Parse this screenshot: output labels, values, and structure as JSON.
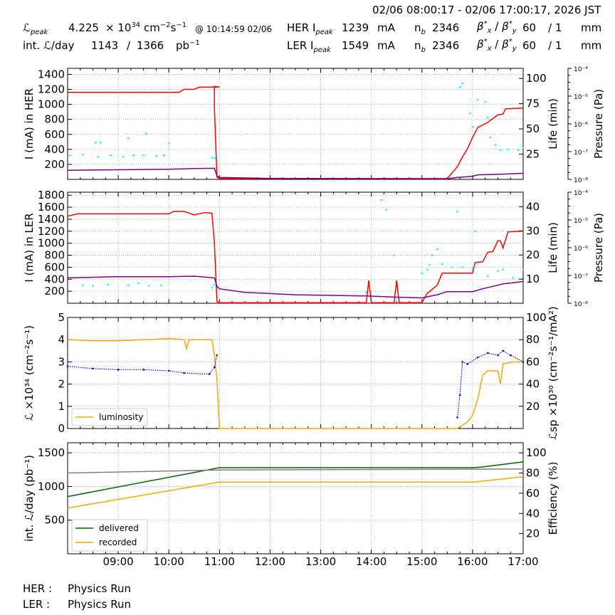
{
  "header": {
    "time_range": "02/06 08:00:17 - 02/06 17:00:17, 2026 JST",
    "lpeak_label": "ℒ",
    "lpeak_sub": "peak",
    "lpeak_value": "4.225",
    "lpeak_times": "× 10",
    "lpeak_exp": "34",
    "lpeak_unit": "cm",
    "lpeak_unit_exp1": "−2",
    "lpeak_unit_s": "s",
    "lpeak_unit_exp2": "−1",
    "lpeak_at": "@ 10:14:59 02/06",
    "int_label": "int. ℒ/day",
    "int_value1": "1143",
    "int_slash": "/",
    "int_value2": "1366",
    "int_unit": "pb",
    "int_unit_exp": "−1",
    "her_label": "HER I",
    "her_sub": "peak",
    "her_value": "1239",
    "her_unit": "mA",
    "ler_label": "LER I",
    "ler_sub": "peak",
    "ler_value": "1549",
    "ler_unit": "mA",
    "nb_label": "n",
    "nb_sub": "b",
    "nb_her": "2346",
    "nb_ler": "2346",
    "beta_label": "β",
    "beta_x_sub": "x",
    "beta_y_sub": "y",
    "beta_star": "*",
    "beta_sep": "/",
    "beta_her_x": "60",
    "beta_her_y": "/ 1",
    "beta_ler_x": "60",
    "beta_ler_y": "/ 1",
    "beta_unit": "mm"
  },
  "status": {
    "her_label": "HER :",
    "her_value": "Physics Run",
    "ler_label": "LER :",
    "ler_value": "Physics Run"
  },
  "colors": {
    "current": "#ff0000",
    "life": "#800080",
    "pressure": "#00ffff",
    "luminosity": "#ffa500",
    "specific": "#0000ff",
    "delivered": "#006400",
    "recorded": "#ffa500",
    "efficiency": "#808080",
    "grid": "#999999"
  },
  "chart_data": [
    {
      "type": "line",
      "panel": "her",
      "ylabel": "I (mA) in HER",
      "ylim": [
        0,
        1480
      ],
      "yticks": [
        200,
        400,
        600,
        800,
        1000,
        1200,
        1400
      ],
      "y2label": "Life (min)",
      "y2lim": [
        0,
        110
      ],
      "y2ticks": [
        25,
        50,
        75,
        100
      ],
      "y3label": "Pressure (Pa)",
      "y3ticks": [
        "10⁻⁴",
        "10⁻⁵",
        "10⁻⁶",
        "10⁻⁷",
        "10⁻⁸"
      ],
      "xlim": [
        8.0,
        17.0
      ],
      "grid": true,
      "series": [
        {
          "key": "current",
          "points": [
            [
              8.0,
              1160
            ],
            [
              9.0,
              1160
            ],
            [
              10.0,
              1160
            ],
            [
              10.2,
              1160
            ],
            [
              10.3,
              1200
            ],
            [
              10.5,
              1200
            ],
            [
              10.6,
              1230
            ],
            [
              11.0,
              1230
            ],
            [
              10.9,
              1240
            ],
            [
              10.9,
              950
            ],
            [
              10.95,
              30
            ],
            [
              11.0,
              10
            ],
            [
              15.5,
              10
            ],
            [
              15.7,
              170
            ],
            [
              15.8,
              300
            ],
            [
              15.9,
              410
            ],
            [
              16.0,
              560
            ],
            [
              16.1,
              690
            ],
            [
              16.3,
              760
            ],
            [
              16.5,
              860
            ],
            [
              16.6,
              870
            ],
            [
              16.65,
              940
            ],
            [
              17.0,
              950
            ]
          ]
        },
        {
          "key": "life",
          "points": [
            [
              8.0,
              9
            ],
            [
              9.0,
              9.5
            ],
            [
              10.0,
              10
            ],
            [
              10.5,
              10.7
            ],
            [
              10.9,
              11
            ],
            [
              10.95,
              3.5
            ],
            [
              11.0,
              2
            ],
            [
              12.0,
              1
            ],
            [
              15.5,
              0.5
            ],
            [
              15.7,
              2
            ],
            [
              16.0,
              3
            ],
            [
              16.1,
              4.5
            ],
            [
              16.5,
              5
            ],
            [
              17.0,
              6
            ]
          ]
        },
        {
          "key": "pressure",
          "points": [
            [
              8.05,
              320
            ],
            [
              8.3,
              330
            ],
            [
              8.6,
              300
            ],
            [
              8.85,
              320
            ],
            [
              9.1,
              300
            ],
            [
              9.3,
              320
            ],
            [
              9.5,
              320
            ],
            [
              9.75,
              310
            ],
            [
              9.9,
              320
            ],
            [
              8.55,
              490
            ],
            [
              8.65,
              490
            ],
            [
              9.2,
              550
            ],
            [
              9.55,
              610
            ],
            [
              10.0,
              480
            ],
            [
              10.85,
              290
            ],
            [
              10.9,
              280
            ],
            [
              15.75,
              1230
            ],
            [
              15.8,
              1280
            ],
            [
              16.1,
              1060
            ],
            [
              16.25,
              1030
            ],
            [
              16.3,
              820
            ],
            [
              16.35,
              560
            ],
            [
              16.45,
              460
            ],
            [
              16.55,
              390
            ],
            [
              16.7,
              400
            ],
            [
              16.9,
              390
            ],
            [
              17.0,
              420
            ],
            [
              15.95,
              880
            ],
            [
              16.0,
              700
            ]
          ]
        }
      ]
    },
    {
      "type": "line",
      "panel": "ler",
      "ylabel": "I (mA) in LER",
      "ylim": [
        0,
        1850
      ],
      "yticks": [
        200,
        400,
        600,
        800,
        1000,
        1200,
        1400,
        1600,
        1800
      ],
      "y2label": "Life (min)",
      "y2lim": [
        0,
        46
      ],
      "y2ticks": [
        10,
        20,
        30,
        40
      ],
      "y3label": "Pressure (Pa)",
      "y3ticks": [
        "10⁻⁴",
        "10⁻⁵",
        "10⁻⁶",
        "10⁻⁷",
        "10⁻⁸"
      ],
      "xlim": [
        8.0,
        17.0
      ],
      "grid": true,
      "series": [
        {
          "key": "current",
          "points": [
            [
              8.0,
              1450
            ],
            [
              8.2,
              1490
            ],
            [
              9.0,
              1490
            ],
            [
              10.0,
              1490
            ],
            [
              10.1,
              1530
            ],
            [
              10.3,
              1530
            ],
            [
              10.5,
              1470
            ],
            [
              10.7,
              1510
            ],
            [
              10.85,
              1500
            ],
            [
              10.9,
              1000
            ],
            [
              10.95,
              30
            ],
            [
              11.0,
              10
            ],
            [
              13.9,
              10
            ],
            [
              13.95,
              380
            ],
            [
              14.0,
              10
            ],
            [
              14.45,
              10
            ],
            [
              14.5,
              380
            ],
            [
              14.55,
              10
            ],
            [
              15.0,
              10
            ],
            [
              15.1,
              160
            ],
            [
              15.3,
              300
            ],
            [
              15.4,
              500
            ],
            [
              16.0,
              500
            ],
            [
              16.05,
              680
            ],
            [
              16.2,
              690
            ],
            [
              16.3,
              850
            ],
            [
              16.4,
              860
            ],
            [
              16.5,
              1040
            ],
            [
              16.55,
              1040
            ],
            [
              16.6,
              920
            ],
            [
              16.7,
              1190
            ],
            [
              17.0,
              1200
            ]
          ]
        },
        {
          "key": "life",
          "points": [
            [
              8.0,
              10.5
            ],
            [
              9.0,
              11
            ],
            [
              10.0,
              11
            ],
            [
              10.5,
              11.2
            ],
            [
              10.9,
              10.5
            ],
            [
              10.95,
              7
            ],
            [
              11.0,
              6
            ],
            [
              11.5,
              4.5
            ],
            [
              12.5,
              3.5
            ],
            [
              13.9,
              3
            ],
            [
              14.5,
              2.5
            ],
            [
              15.0,
              2.2
            ],
            [
              15.3,
              3.5
            ],
            [
              15.5,
              4.8
            ],
            [
              16.0,
              4.8
            ],
            [
              16.2,
              6
            ],
            [
              16.6,
              8
            ],
            [
              17.0,
              9
            ]
          ]
        },
        {
          "key": "pressure",
          "points": [
            [
              8.3,
              300
            ],
            [
              8.5,
              290
            ],
            [
              8.8,
              310
            ],
            [
              9.2,
              300
            ],
            [
              9.4,
              330
            ],
            [
              9.6,
              290
            ],
            [
              9.85,
              300
            ],
            [
              10.85,
              260
            ],
            [
              10.9,
              310
            ],
            [
              13.9,
              180
            ],
            [
              14.2,
              1720
            ],
            [
              14.3,
              1560
            ],
            [
              14.45,
              800
            ],
            [
              15.0,
              500
            ],
            [
              15.1,
              560
            ],
            [
              15.15,
              640
            ],
            [
              15.2,
              800
            ],
            [
              15.3,
              900
            ],
            [
              15.4,
              650
            ],
            [
              15.6,
              600
            ],
            [
              15.7,
              1530
            ],
            [
              15.8,
              600
            ],
            [
              16.0,
              580
            ],
            [
              16.1,
              660
            ],
            [
              16.3,
              450
            ],
            [
              16.5,
              540
            ],
            [
              16.6,
              560
            ],
            [
              16.8,
              420
            ],
            [
              17.0,
              560
            ],
            [
              16.05,
              1200
            ]
          ]
        }
      ]
    },
    {
      "type": "line",
      "panel": "lum",
      "ylabel": "ℒ ×10³⁴ (cm⁻²s⁻¹)",
      "ylim": [
        0,
        5
      ],
      "yticks": [
        0,
        1,
        2,
        3,
        4,
        5
      ],
      "y2label": "ℒsp ×10³⁰ (cm⁻²s⁻¹/mA²)",
      "y2lim": [
        0,
        100
      ],
      "y2ticks": [
        20,
        40,
        60,
        80,
        100
      ],
      "xlim": [
        8.0,
        17.0
      ],
      "grid": true,
      "legend": "lower-left",
      "series": [
        {
          "key": "luminosity",
          "name": "luminosity",
          "points": [
            [
              8.0,
              4.0
            ],
            [
              8.5,
              3.95
            ],
            [
              9.0,
              3.95
            ],
            [
              9.5,
              4.0
            ],
            [
              10.0,
              4.05
            ],
            [
              10.3,
              4.0
            ],
            [
              10.35,
              3.6
            ],
            [
              10.4,
              4.0
            ],
            [
              10.85,
              4.0
            ],
            [
              10.9,
              3.3
            ],
            [
              10.95,
              2.2
            ],
            [
              11.0,
              0
            ],
            [
              15.7,
              0
            ],
            [
              15.9,
              0.3
            ],
            [
              16.0,
              0.6
            ],
            [
              16.1,
              1.3
            ],
            [
              16.2,
              2.4
            ],
            [
              16.3,
              2.6
            ],
            [
              16.4,
              2.6
            ],
            [
              16.5,
              2.6
            ],
            [
              16.55,
              2.0
            ],
            [
              16.6,
              2.9
            ],
            [
              16.8,
              3.0
            ],
            [
              17.0,
              3.0
            ]
          ]
        },
        {
          "key": "specific",
          "points": [
            [
              8.0,
              56
            ],
            [
              8.5,
              54
            ],
            [
              9.0,
              53
            ],
            [
              9.5,
              53
            ],
            [
              10.0,
              52
            ],
            [
              10.3,
              50
            ],
            [
              10.8,
              49
            ],
            [
              10.9,
              55
            ],
            [
              10.95,
              66
            ],
            [
              15.7,
              10
            ],
            [
              15.75,
              30
            ],
            [
              15.8,
              60
            ],
            [
              15.9,
              58
            ],
            [
              16.1,
              64
            ],
            [
              16.3,
              68
            ],
            [
              16.5,
              66
            ],
            [
              16.6,
              70
            ],
            [
              16.75,
              66
            ],
            [
              17.0,
              60
            ]
          ]
        }
      ]
    },
    {
      "type": "line",
      "panel": "int",
      "ylabel": "int. ℒ/day (pb⁻¹)",
      "ylim": [
        0,
        1650
      ],
      "yticks": [
        500,
        1000,
        1500
      ],
      "y2label": "Efficiency (%)",
      "y2lim": [
        0,
        110
      ],
      "y2ticks": [
        20,
        40,
        60,
        80,
        100
      ],
      "xlim": [
        8.0,
        17.0
      ],
      "xticks": [
        "09:00",
        "10:00",
        "11:00",
        "12:00",
        "13:00",
        "14:00",
        "15:00",
        "16:00",
        "17:00"
      ],
      "grid": true,
      "legend": "lower-left",
      "series": [
        {
          "key": "delivered",
          "name": "delivered",
          "points": [
            [
              8.0,
              850
            ],
            [
              11.0,
              1280
            ],
            [
              16.0,
              1280
            ],
            [
              16.2,
              1290
            ],
            [
              17.0,
              1366
            ]
          ]
        },
        {
          "key": "recorded",
          "name": "recorded",
          "points": [
            [
              8.0,
              680
            ],
            [
              11.0,
              1065
            ],
            [
              16.0,
              1065
            ],
            [
              16.2,
              1080
            ],
            [
              17.0,
              1143
            ]
          ]
        },
        {
          "key": "efficiency",
          "points": [
            [
              8.0,
              80
            ],
            [
              11.0,
              83
            ],
            [
              17.0,
              84
            ]
          ]
        }
      ]
    }
  ]
}
